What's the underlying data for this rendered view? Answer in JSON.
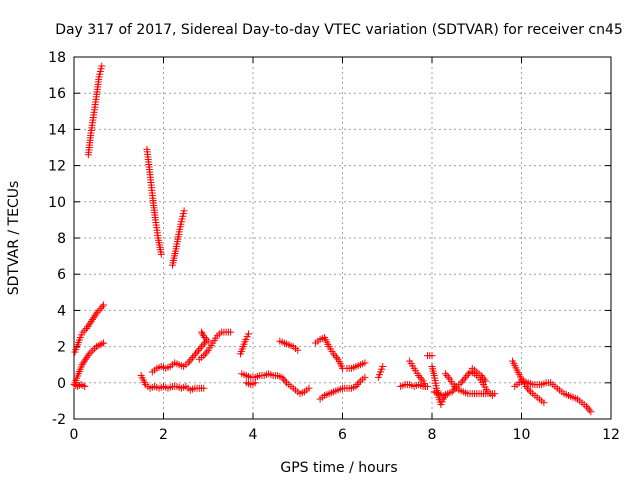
{
  "chart_data": {
    "type": "scatter",
    "title": "Day 317 of 2017, Sidereal Day-to-day VTEC variation (SDTVAR) for receiver cn45",
    "xlabel": "GPS time / hours",
    "ylabel": "SDTVAR / TECUs",
    "xlim": [
      0,
      12
    ],
    "ylim": [
      -2,
      18
    ],
    "xticks": [
      0,
      2,
      4,
      6,
      8,
      10,
      12
    ],
    "yticks": [
      -2,
      0,
      2,
      4,
      6,
      8,
      10,
      12,
      14,
      16,
      18
    ],
    "xtick_labels": [
      "0",
      "2",
      "4",
      "6",
      "8",
      "10",
      "12"
    ],
    "ytick_labels": [
      "-2",
      "0",
      "2",
      "4",
      "6",
      "8",
      "10",
      "12",
      "14",
      "16",
      "18"
    ],
    "grid": true,
    "marker": "+",
    "color": "#ff0000",
    "series": [
      {
        "segments": [
          {
            "x": [
              0.32,
              0.38,
              0.44,
              0.5,
              0.56,
              0.62
            ],
            "y": [
              12.6,
              13.8,
              14.8,
              15.8,
              16.9,
              17.5
            ]
          },
          {
            "x": [
              1.63,
              1.7,
              1.76,
              1.82,
              1.88,
              1.95
            ],
            "y": [
              12.9,
              11.5,
              10.2,
              9.0,
              8.0,
              7.1
            ]
          },
          {
            "x": [
              2.2,
              2.28,
              2.34,
              2.4,
              2.46
            ],
            "y": [
              6.5,
              7.4,
              8.2,
              8.9,
              9.5
            ]
          },
          {
            "x": [
              0.02,
              0.08,
              0.14,
              0.2,
              0.28,
              0.36,
              0.44,
              0.52,
              0.6,
              0.66
            ],
            "y": [
              1.7,
              2.1,
              2.5,
              2.8,
              3.0,
              3.3,
              3.6,
              3.9,
              4.1,
              4.3
            ]
          },
          {
            "x": [
              0.02,
              0.1,
              0.18,
              0.26,
              0.34,
              0.42,
              0.5,
              0.58,
              0.66
            ],
            "y": [
              0.0,
              0.5,
              1.0,
              1.3,
              1.6,
              1.8,
              2.0,
              2.1,
              2.2
            ]
          },
          {
            "x": [
              0.0,
              0.08,
              0.16,
              0.24
            ],
            "y": [
              -0.1,
              -0.2,
              -0.1,
              -0.2
            ]
          },
          {
            "x": [
              1.5,
              1.6,
              1.7,
              1.8,
              1.9,
              2.0,
              2.1,
              2.2,
              2.3,
              2.4,
              2.5,
              2.6,
              2.7,
              2.8,
              2.9
            ],
            "y": [
              0.4,
              -0.1,
              -0.3,
              -0.2,
              -0.3,
              -0.2,
              -0.3,
              -0.2,
              -0.2,
              -0.3,
              -0.2,
              -0.4,
              -0.3,
              -0.3,
              -0.3
            ]
          },
          {
            "x": [
              1.75,
              1.85,
              1.95,
              2.05,
              2.15,
              2.25,
              2.35,
              2.45,
              2.55,
              2.65,
              2.75,
              2.85,
              2.95
            ],
            "y": [
              0.6,
              0.8,
              0.9,
              0.8,
              0.9,
              1.1,
              1.0,
              0.9,
              1.1,
              1.4,
              1.7,
              2.0,
              2.3
            ]
          },
          {
            "x": [
              2.8,
              2.9,
              3.0,
              3.1,
              3.2,
              3.3,
              3.4,
              3.5
            ],
            "y": [
              1.3,
              1.5,
              1.8,
              2.2,
              2.6,
              2.8,
              2.8,
              2.8
            ]
          },
          {
            "x": [
              2.85,
              2.92,
              3.0
            ],
            "y": [
              2.8,
              2.5,
              2.3
            ]
          },
          {
            "x": [
              3.72,
              3.78,
              3.84,
              3.9
            ],
            "y": [
              1.6,
              2.0,
              2.4,
              2.7
            ]
          },
          {
            "x": [
              3.75,
              3.85,
              3.95,
              4.05,
              4.15,
              4.25,
              4.35,
              4.45,
              4.55,
              4.65,
              4.75,
              4.85,
              4.95,
              5.05,
              5.15,
              5.25
            ],
            "y": [
              0.5,
              0.4,
              0.3,
              0.3,
              0.4,
              0.4,
              0.5,
              0.4,
              0.4,
              0.3,
              0.0,
              -0.2,
              -0.4,
              -0.6,
              -0.5,
              -0.3
            ]
          },
          {
            "x": [
              3.85,
              3.95,
              4.05
            ],
            "y": [
              0.0,
              -0.1,
              0.0
            ]
          },
          {
            "x": [
              4.6,
              4.7,
              4.8,
              4.9,
              5.0
            ],
            "y": [
              2.3,
              2.2,
              2.1,
              2.0,
              1.8
            ]
          },
          {
            "x": [
              5.4,
              5.5,
              5.6,
              5.7,
              5.8,
              5.9,
              6.0
            ],
            "y": [
              2.2,
              2.4,
              2.5,
              2.0,
              1.6,
              1.3,
              0.8
            ]
          },
          {
            "x": [
              5.5,
              5.6,
              5.7,
              5.8,
              5.9,
              6.0,
              6.1,
              6.2,
              6.3,
              6.4,
              6.5
            ],
            "y": [
              -0.9,
              -0.7,
              -0.6,
              -0.5,
              -0.4,
              -0.3,
              -0.3,
              -0.3,
              -0.2,
              0.1,
              0.3
            ]
          },
          {
            "x": [
              6.1,
              6.2,
              6.3,
              6.4,
              6.5
            ],
            "y": [
              0.8,
              0.8,
              0.9,
              1.0,
              1.1
            ]
          },
          {
            "x": [
              6.8,
              6.85,
              6.9
            ],
            "y": [
              0.3,
              0.6,
              0.9
            ]
          },
          {
            "x": [
              7.3,
              7.4,
              7.5,
              7.6,
              7.7,
              7.8,
              7.9
            ],
            "y": [
              -0.2,
              -0.1,
              -0.1,
              -0.2,
              -0.1,
              -0.2,
              -0.2
            ]
          },
          {
            "x": [
              7.5,
              7.6,
              7.7,
              7.8,
              7.85
            ],
            "y": [
              1.2,
              0.8,
              0.4,
              0.1,
              -0.2
            ]
          },
          {
            "x": [
              7.9,
              8.0
            ],
            "y": [
              1.5,
              1.5
            ]
          },
          {
            "x": [
              8.0,
              8.05,
              8.1,
              8.15,
              8.2,
              8.25,
              8.3
            ],
            "y": [
              0.9,
              0.4,
              -0.3,
              -0.8,
              -1.2,
              -0.9,
              -0.7
            ]
          },
          {
            "x": [
              8.05,
              8.15,
              8.25,
              8.35,
              8.45,
              8.55,
              8.65,
              8.75,
              8.85,
              8.95,
              9.05,
              9.15,
              9.25,
              9.35
            ],
            "y": [
              -0.5,
              -0.6,
              -0.7,
              -0.6,
              -0.5,
              -0.2,
              0.0,
              0.3,
              0.6,
              0.5,
              0.3,
              -0.1,
              -0.5,
              -0.7
            ]
          },
          {
            "x": [
              8.3,
              8.4,
              8.5,
              8.6,
              8.7,
              8.8,
              8.9,
              9.0,
              9.1,
              9.2,
              9.3,
              9.4
            ],
            "y": [
              0.5,
              0.2,
              -0.2,
              -0.4,
              -0.5,
              -0.6,
              -0.6,
              -0.6,
              -0.6,
              -0.6,
              -0.6,
              -0.6
            ]
          },
          {
            "x": [
              8.9,
              9.0,
              9.1,
              9.2
            ],
            "y": [
              0.8,
              0.6,
              0.4,
              0.1
            ]
          },
          {
            "x": [
              9.8,
              9.9,
              10.0,
              10.1,
              10.2,
              10.3,
              10.4,
              10.5
            ],
            "y": [
              1.2,
              0.7,
              0.2,
              -0.2,
              -0.5,
              -0.7,
              -0.9,
              -1.1
            ]
          },
          {
            "x": [
              9.85,
              9.95,
              10.05,
              10.15,
              10.25,
              10.35,
              10.45,
              10.55,
              10.65,
              10.75,
              10.85,
              10.95,
              11.05,
              11.15,
              11.25,
              11.35,
              11.45,
              11.55
            ],
            "y": [
              -0.2,
              0.0,
              0.1,
              0.0,
              -0.1,
              -0.1,
              -0.1,
              0.0,
              0.0,
              -0.2,
              -0.4,
              -0.6,
              -0.7,
              -0.8,
              -0.9,
              -1.1,
              -1.3,
              -1.6
            ]
          }
        ]
      }
    ]
  }
}
